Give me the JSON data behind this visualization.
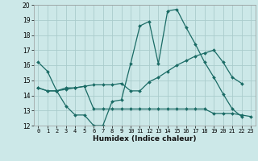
{
  "xlabel": "Humidex (Indice chaleur)",
  "background_color": "#cce8e8",
  "line_color": "#1a6b65",
  "grid_color": "#aacccc",
  "xlim": [
    -0.5,
    23.5
  ],
  "ylim": [
    12,
    20
  ],
  "yticks": [
    12,
    13,
    14,
    15,
    16,
    17,
    18,
    19,
    20
  ],
  "xticks": [
    0,
    1,
    2,
    3,
    4,
    5,
    6,
    7,
    8,
    9,
    10,
    11,
    12,
    13,
    14,
    15,
    16,
    17,
    18,
    19,
    20,
    21,
    22,
    23
  ],
  "series": [
    {
      "x": [
        0,
        1,
        2,
        3,
        4,
        5,
        6,
        7,
        8,
        9,
        10,
        11,
        12,
        13,
        14,
        15,
        16,
        17,
        18,
        19,
        20,
        21,
        22
      ],
      "y": [
        16.2,
        15.6,
        14.3,
        13.3,
        12.7,
        12.7,
        12.0,
        12.0,
        13.6,
        13.7,
        16.1,
        18.6,
        18.9,
        16.1,
        19.6,
        19.7,
        18.5,
        17.4,
        16.2,
        15.2,
        14.1,
        13.1,
        12.6
      ]
    },
    {
      "x": [
        0,
        1,
        2,
        3,
        4,
        5,
        6,
        7,
        8,
        9,
        10,
        11,
        12,
        13,
        14,
        15,
        16,
        17,
        18,
        19,
        20,
        21,
        22,
        23
      ],
      "y": [
        14.5,
        14.3,
        14.3,
        14.4,
        14.5,
        14.6,
        13.1,
        13.1,
        13.1,
        13.1,
        13.1,
        13.1,
        13.1,
        13.1,
        13.1,
        13.1,
        13.1,
        13.1,
        13.1,
        12.8,
        12.8,
        12.8,
        12.7,
        12.6
      ]
    },
    {
      "x": [
        0,
        1,
        2,
        3,
        4,
        5,
        6,
        7,
        8,
        9,
        10,
        11,
        12,
        13,
        14,
        15,
        16,
        17,
        18,
        19,
        20,
        21,
        22
      ],
      "y": [
        14.5,
        14.3,
        14.3,
        14.5,
        14.5,
        14.6,
        14.7,
        14.7,
        14.7,
        14.8,
        14.3,
        14.3,
        14.9,
        15.2,
        15.6,
        16.0,
        16.3,
        16.6,
        16.8,
        17.0,
        16.2,
        15.2,
        14.8
      ]
    }
  ]
}
